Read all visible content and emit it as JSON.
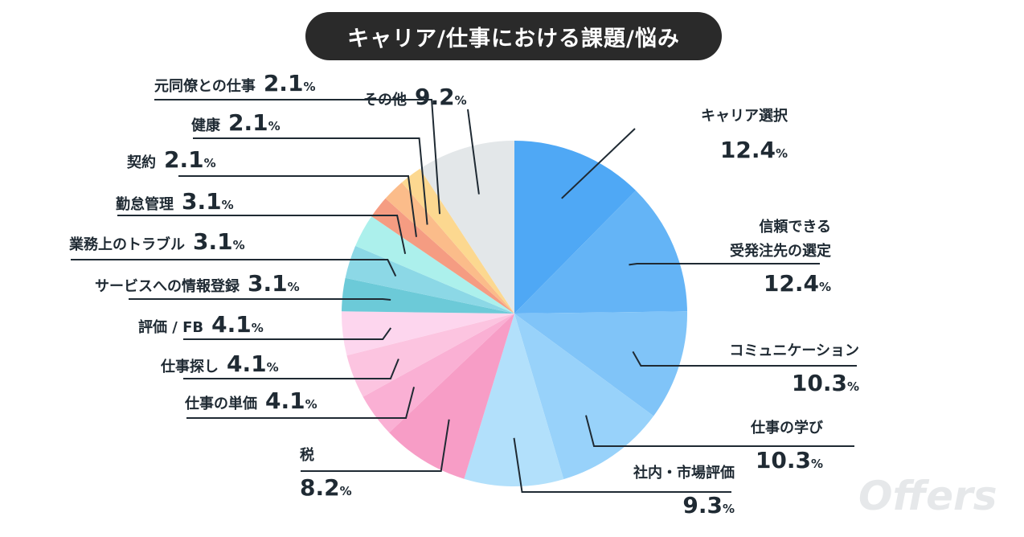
{
  "chart_data": {
    "type": "pie",
    "title": "キャリア/仕事における課題/悩み",
    "unit": "%",
    "slices": [
      {
        "label": "キャリア選択",
        "value": 12.4,
        "color": "#4fa8f5"
      },
      {
        "label": "信頼できる受発注先の選定",
        "value": 12.4,
        "color": "#64b4f6",
        "label_lines": [
          "信頼できる",
          "受発注先の選定"
        ]
      },
      {
        "label": "コミュニケーション",
        "value": 10.3,
        "color": "#80c4f8"
      },
      {
        "label": "仕事の学び",
        "value": 10.3,
        "color": "#98d2fa"
      },
      {
        "label": "社内・市場評価",
        "value": 9.3,
        "color": "#b2e0fb"
      },
      {
        "label": "税",
        "value": 8.2,
        "color": "#f79dc6"
      },
      {
        "label": "仕事の単価",
        "value": 4.1,
        "color": "#fab0d4"
      },
      {
        "label": "仕事探し",
        "value": 4.1,
        "color": "#fcc4e0"
      },
      {
        "label": "評価 / FB",
        "value": 4.1,
        "color": "#fdd6ee"
      },
      {
        "label": "サービスへの情報登録",
        "value": 3.1,
        "color": "#6ccad8"
      },
      {
        "label": "業務上のトラブル",
        "value": 3.1,
        "color": "#8cd8e6"
      },
      {
        "label": "勤怠管理",
        "value": 3.1,
        "color": "#acf0ec"
      },
      {
        "label": "契約",
        "value": 2.1,
        "color": "#f59c82"
      },
      {
        "label": "健康",
        "value": 2.1,
        "color": "#fbbc8a"
      },
      {
        "label": "元同僚との仕事",
        "value": 2.1,
        "color": "#fcd890"
      },
      {
        "label": "その他",
        "value": 9.2,
        "color": "#e3e7e9"
      }
    ]
  },
  "watermark": "Offers"
}
